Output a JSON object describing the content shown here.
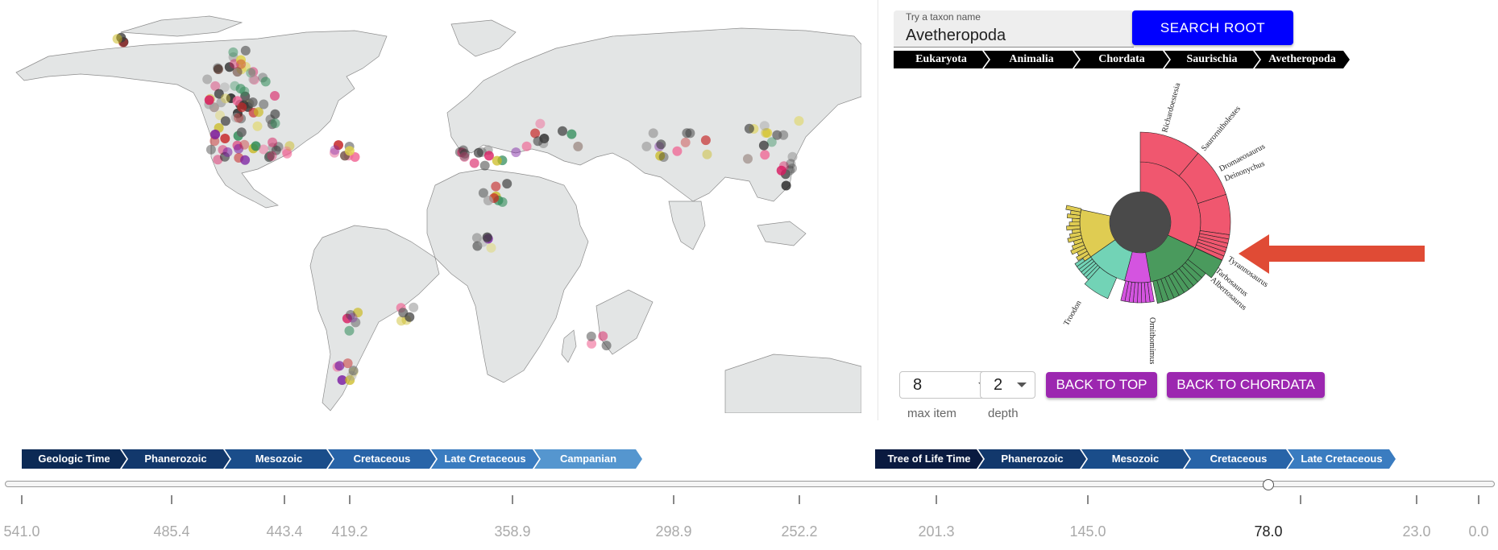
{
  "search": {
    "label": "Try a taxon name",
    "value": "Avetheropoda",
    "button_label": "SEARCH ROOT"
  },
  "taxonomy_breadcrumb": [
    "Eukaryota",
    "Animalia",
    "Chordata",
    "Saurischia",
    "Avetheropoda"
  ],
  "sunburst": {
    "labels": [
      "Richardoestesia",
      "Saurornitholestes",
      "Dromaeosaurus",
      "Deinonychus",
      "Tyrannosaurus",
      "Tarbosaurus",
      "Albertosaurus",
      "Ornithomimus",
      "Troodon"
    ],
    "colors": {
      "pink": "#f0576f",
      "green": "#4a9a5d",
      "magenta": "#d454e0",
      "teal": "#72d3b6",
      "yellow": "#dfcc52",
      "center": "#4a4a4a",
      "arrow": "#e04b35"
    }
  },
  "controls": {
    "max_item_value": "8",
    "max_item_label": "max item",
    "depth_value": "2",
    "depth_label": "depth",
    "back_to_top": "BACK TO TOP",
    "back_to_chordata": "BACK TO CHORDATA"
  },
  "geologic_breadcrumb": [
    "Geologic Time",
    "Phanerozoic",
    "Mesozoic",
    "Cretaceous",
    "Late Cretaceous",
    "Campanian"
  ],
  "tree_of_life_breadcrumb": [
    "Tree of Life Time",
    "Phanerozoic",
    "Mesozoic",
    "Cretaceous",
    "Late Cretaceous"
  ],
  "timeline": {
    "ticks": [
      "541.0",
      "485.4",
      "443.4",
      "419.2",
      "358.9",
      "298.9",
      "252.2",
      "201.3",
      "145.0",
      "78.0",
      "23.0",
      "0.0"
    ],
    "current_value": "78.0"
  }
}
